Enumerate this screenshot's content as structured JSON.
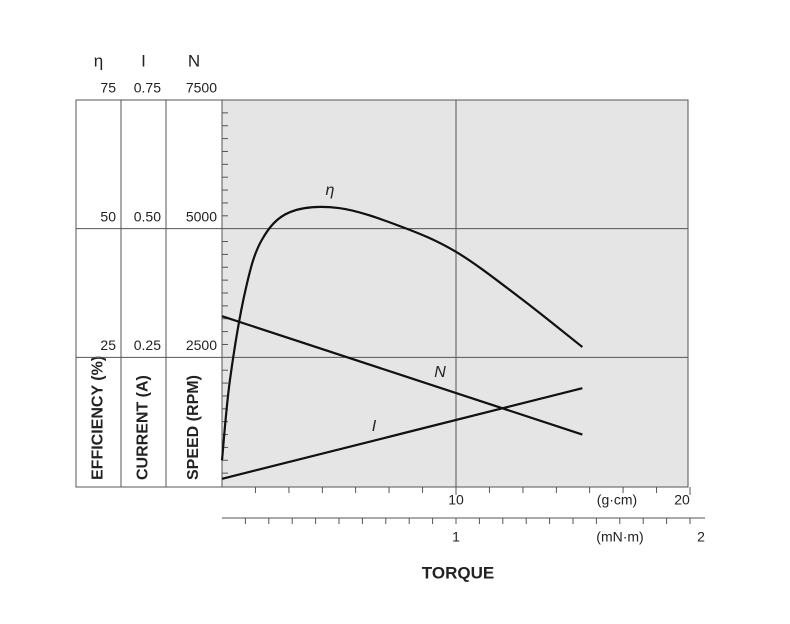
{
  "chart_data": {
    "type": "line",
    "x_label": "TORQUE",
    "y_axes": [
      {
        "symbol": "η",
        "label": "EFFICIENCY (%)",
        "ylim": [
          0,
          75
        ],
        "yticks": [
          25,
          50,
          75
        ]
      },
      {
        "symbol": "I",
        "label": "CURRENT (A)",
        "ylim": [
          0,
          0.75
        ],
        "yticks": [
          0.25,
          {
            "value": 0.5,
            "label": "0.50"
          },
          0.75
        ]
      },
      {
        "symbol": "N",
        "label": "SPEED (RPM)",
        "ylim": [
          0,
          7500
        ],
        "yticks": [
          2500,
          5000,
          7500
        ],
        "yminorticks": [
          250,
          500,
          750,
          1000,
          1250,
          1500,
          1750,
          2000,
          2250,
          2750,
          3000,
          3250,
          3500,
          3750,
          4000,
          4250,
          4500,
          4750,
          5250,
          5500,
          5750,
          6000,
          6250,
          6500,
          6750,
          7000,
          7250
        ]
      }
    ],
    "x_axes": [
      {
        "unit": "(g·cm)",
        "xlim": [
          0,
          20
        ],
        "xticks": [
          10,
          20
        ],
        "xminorticks": [
          1.43,
          2.86,
          4.29,
          5.71,
          7.14,
          8.57,
          11.43,
          12.86,
          14.29,
          15.71,
          17.14,
          18.57
        ]
      },
      {
        "unit": "(mN·m)",
        "xlim": [
          0,
          2
        ],
        "xticks": [
          1,
          2
        ],
        "xminorticks": [
          0.1,
          0.2,
          0.3,
          0.4,
          0.5,
          0.6,
          0.7,
          0.8,
          0.9,
          1.1,
          1.2,
          1.3,
          1.4,
          1.5,
          1.6,
          1.7,
          1.8,
          1.9
        ]
      }
    ],
    "series": [
      {
        "name": "η",
        "axis": 0,
        "color": "#111111",
        "x": [
          0,
          0.34,
          1,
          1.7,
          2.9,
          5,
          7.6,
          10,
          12.7,
          15.4
        ],
        "values": [
          5,
          20.6,
          38,
          47.8,
          53.2,
          54,
          50.5,
          45.5,
          36.7,
          27
        ]
      },
      {
        "name": "N",
        "axis": 2,
        "color": "#111111",
        "x": [
          0,
          15.4
        ],
        "values": [
          3300,
          1000
        ]
      },
      {
        "name": "I",
        "axis": 1,
        "color": "#111111",
        "x": [
          0,
          15.4
        ],
        "values": [
          0.014,
          0.19
        ]
      }
    ],
    "grid": true
  }
}
